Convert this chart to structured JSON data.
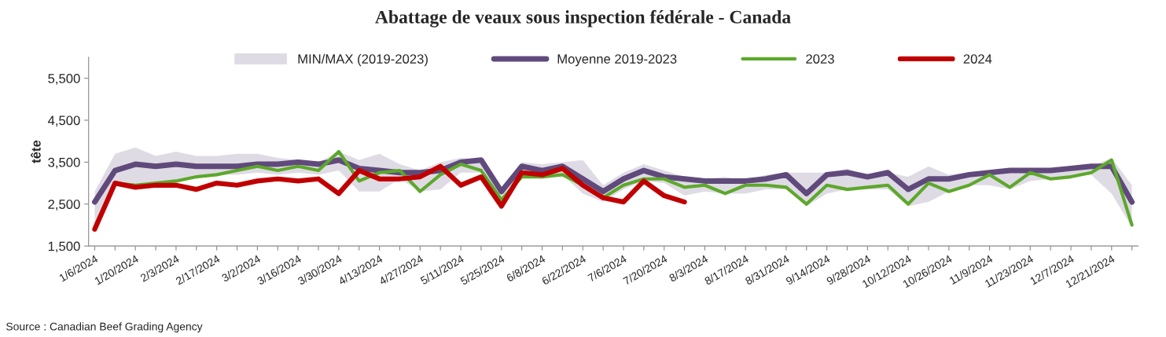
{
  "chart_data": {
    "type": "line",
    "title": "Abattage de veaux sous inspection fédérale - Canada",
    "ylabel": "tête",
    "categories": [
      "1/6/2024",
      null,
      "1/20/2024",
      null,
      "2/3/2024",
      null,
      "2/17/2024",
      null,
      "3/2/2024",
      null,
      "3/16/2024",
      null,
      "3/30/2024",
      null,
      "4/13/2024",
      null,
      "4/27/2024",
      null,
      "5/11/2024",
      null,
      "5/25/2024",
      null,
      "6/8/2024",
      null,
      "6/22/2024",
      null,
      "7/6/2024",
      null,
      "7/20/2024",
      null,
      "8/3/2024",
      null,
      "8/17/2024",
      null,
      "8/31/2024",
      null,
      "9/14/2024",
      null,
      "9/28/2024",
      null,
      "10/12/2024",
      null,
      "10/26/2024",
      null,
      "11/9/2024",
      null,
      "11/23/2024",
      null,
      "12/7/2024",
      null,
      "12/21/2024",
      null
    ],
    "series": [
      {
        "name": "Moyenne 2019-2023",
        "color": "#604a7b",
        "values": [
          2550,
          3300,
          3450,
          3400,
          3450,
          3400,
          3400,
          3400,
          3450,
          3450,
          3500,
          3450,
          3550,
          3350,
          3300,
          3250,
          3250,
          3300,
          3500,
          3550,
          2800,
          3400,
          3300,
          3400,
          3100,
          2800,
          3100,
          3300,
          3150,
          3100,
          3050,
          3050,
          3050,
          3100,
          3200,
          2750,
          3200,
          3250,
          3150,
          3250,
          2850,
          3100,
          3100,
          3200,
          3250,
          3300,
          3300,
          3300,
          3350,
          3400,
          3400,
          2550
        ],
        "lower": [
          1950,
          3000,
          2950,
          3000,
          3050,
          3150,
          3200,
          3200,
          3250,
          3200,
          3250,
          3200,
          3300,
          2800,
          2800,
          3100,
          2800,
          2850,
          3250,
          3250,
          2550,
          3150,
          3100,
          3200,
          2750,
          2550,
          2850,
          3050,
          3000,
          2700,
          2800,
          2750,
          2750,
          2850,
          2850,
          2450,
          2750,
          2850,
          2850,
          2850,
          2450,
          2550,
          2800,
          2950,
          2950,
          2850,
          3050,
          3100,
          3150,
          3200,
          2750,
          1950
        ],
        "upper": [
          2800,
          3700,
          3850,
          3650,
          3750,
          3650,
          3650,
          3700,
          3700,
          3600,
          3550,
          3500,
          3750,
          3550,
          3700,
          3450,
          3300,
          3500,
          3600,
          3550,
          2850,
          3500,
          3450,
          3500,
          3550,
          2950,
          3250,
          3450,
          3300,
          3150,
          3100,
          3150,
          3050,
          3200,
          3250,
          3250,
          3250,
          3350,
          3150,
          3250,
          3150,
          3400,
          3200,
          3250,
          3300,
          3300,
          3300,
          3300,
          3400,
          3400,
          3600,
          2950
        ]
      },
      {
        "name": "2023",
        "color": "#5da82b",
        "values": [
          1950,
          3000,
          2950,
          3000,
          3050,
          3150,
          3200,
          3300,
          3400,
          3300,
          3400,
          3300,
          3750,
          3050,
          3250,
          3300,
          2800,
          3200,
          3450,
          3300,
          2600,
          3150,
          3150,
          3200,
          2950,
          2650,
          2950,
          3100,
          3100,
          2900,
          2950,
          2750,
          2950,
          2950,
          2900,
          2500,
          2950,
          2850,
          2900,
          2950,
          2500,
          3000,
          2800,
          2950,
          3200,
          2900,
          3250,
          3100,
          3150,
          3250,
          3550,
          2000
        ]
      },
      {
        "name": "2024",
        "color": "#c00000",
        "values": [
          1900,
          3000,
          2900,
          2950,
          2950,
          2850,
          3000,
          2950,
          3050,
          3100,
          3050,
          3100,
          2750,
          3300,
          3100,
          3100,
          3150,
          3400,
          2950,
          3150,
          2450,
          3250,
          3200,
          3350,
          2950,
          2650,
          2550,
          3050,
          2700,
          2550,
          null,
          null,
          null,
          null,
          null,
          null,
          null,
          null,
          null,
          null,
          null,
          null,
          null,
          null,
          null,
          null,
          null,
          null,
          null,
          null,
          null,
          null
        ]
      }
    ],
    "ylim": [
      1500,
      6000
    ],
    "yticks": [
      {
        "value": 1500,
        "label": "1,500"
      },
      {
        "value": 2500,
        "label": "2,500"
      },
      {
        "value": 3500,
        "label": "3,500"
      },
      {
        "value": 4500,
        "label": "4,500"
      },
      {
        "value": 5500,
        "label": "5,500"
      }
    ],
    "legend": "top",
    "grid": false,
    "annotations": [
      "MIN/MAX (2019-2023)",
      "Source : Canadian Beef Grading Agency"
    ]
  }
}
